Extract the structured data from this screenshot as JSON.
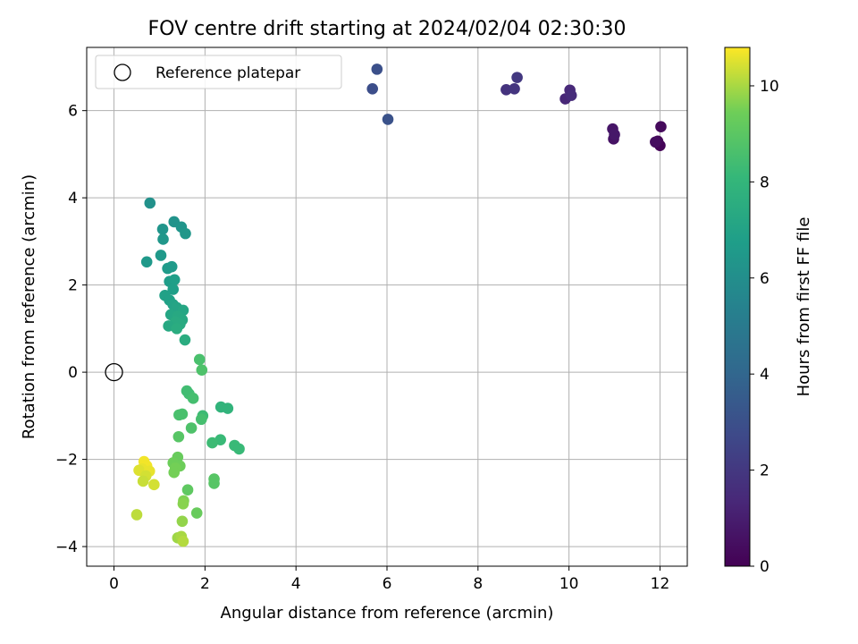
{
  "chart_data": {
    "type": "scatter",
    "title": "FOV centre drift starting at 2024/02/04 02:30:30",
    "xlabel": "Angular distance from reference (arcmin)",
    "ylabel": "Rotation from reference (arcmin)",
    "colorbar_label": "Hours from first FF file",
    "xlim": [
      -0.6,
      12.6
    ],
    "ylim": [
      -4.45,
      7.45
    ],
    "x_ticks": [
      0,
      2,
      4,
      6,
      8,
      10,
      12
    ],
    "y_ticks": [
      -4,
      -2,
      0,
      2,
      4,
      6
    ],
    "colorbar_range": [
      0,
      10.8
    ],
    "colorbar_ticks": [
      0,
      2,
      4,
      6,
      8,
      10
    ],
    "colormap": "viridis",
    "grid": true,
    "legend": {
      "placement": "top-left",
      "entries": [
        "Reference platepar"
      ]
    },
    "reference_point": {
      "x": 0,
      "y": 0
    },
    "points": [
      {
        "x": 12.0,
        "y": 5.2,
        "t": 0.1
      },
      {
        "x": 11.95,
        "y": 5.3,
        "t": 0.2
      },
      {
        "x": 12.02,
        "y": 5.63,
        "t": 0.3
      },
      {
        "x": 11.9,
        "y": 5.28,
        "t": 0.4
      },
      {
        "x": 10.98,
        "y": 5.35,
        "t": 0.6
      },
      {
        "x": 10.96,
        "y": 5.58,
        "t": 0.7
      },
      {
        "x": 11.0,
        "y": 5.45,
        "t": 0.8
      },
      {
        "x": 9.92,
        "y": 6.27,
        "t": 1.3
      },
      {
        "x": 10.02,
        "y": 6.47,
        "t": 1.4
      },
      {
        "x": 10.05,
        "y": 6.35,
        "t": 1.5
      },
      {
        "x": 8.62,
        "y": 6.48,
        "t": 1.8
      },
      {
        "x": 8.8,
        "y": 6.5,
        "t": 1.9
      },
      {
        "x": 8.86,
        "y": 6.76,
        "t": 2.0
      },
      {
        "x": 5.68,
        "y": 6.5,
        "t": 2.9
      },
      {
        "x": 5.78,
        "y": 6.95,
        "t": 3.0
      },
      {
        "x": 6.02,
        "y": 5.8,
        "t": 3.1
      },
      {
        "x": 0.79,
        "y": 3.88,
        "t": 6.1
      },
      {
        "x": 1.32,
        "y": 3.45,
        "t": 6.2
      },
      {
        "x": 1.48,
        "y": 3.33,
        "t": 6.3
      },
      {
        "x": 1.57,
        "y": 3.18,
        "t": 6.4
      },
      {
        "x": 1.07,
        "y": 3.28,
        "t": 6.3
      },
      {
        "x": 1.08,
        "y": 3.05,
        "t": 6.4
      },
      {
        "x": 1.03,
        "y": 2.68,
        "t": 6.5
      },
      {
        "x": 0.72,
        "y": 2.53,
        "t": 6.5
      },
      {
        "x": 1.18,
        "y": 2.38,
        "t": 6.6
      },
      {
        "x": 1.27,
        "y": 2.42,
        "t": 6.6
      },
      {
        "x": 1.22,
        "y": 2.08,
        "t": 6.7
      },
      {
        "x": 1.33,
        "y": 2.12,
        "t": 6.8
      },
      {
        "x": 1.3,
        "y": 1.9,
        "t": 6.8
      },
      {
        "x": 1.12,
        "y": 1.76,
        "t": 6.9
      },
      {
        "x": 1.22,
        "y": 1.65,
        "t": 6.9
      },
      {
        "x": 1.3,
        "y": 1.55,
        "t": 7.0
      },
      {
        "x": 1.38,
        "y": 1.48,
        "t": 7.1
      },
      {
        "x": 1.52,
        "y": 1.42,
        "t": 7.2
      },
      {
        "x": 1.25,
        "y": 1.32,
        "t": 7.2
      },
      {
        "x": 1.4,
        "y": 1.28,
        "t": 7.3
      },
      {
        "x": 1.5,
        "y": 1.2,
        "t": 7.3
      },
      {
        "x": 1.35,
        "y": 1.15,
        "t": 7.4
      },
      {
        "x": 1.45,
        "y": 1.1,
        "t": 7.4
      },
      {
        "x": 1.2,
        "y": 1.06,
        "t": 7.3
      },
      {
        "x": 1.38,
        "y": 1.0,
        "t": 7.5
      },
      {
        "x": 1.56,
        "y": 0.74,
        "t": 7.5
      },
      {
        "x": 1.88,
        "y": 0.29,
        "t": 8.6
      },
      {
        "x": 1.93,
        "y": 0.05,
        "t": 8.7
      },
      {
        "x": 1.6,
        "y": -0.43,
        "t": 8.4
      },
      {
        "x": 1.65,
        "y": -0.5,
        "t": 8.4
      },
      {
        "x": 1.74,
        "y": -0.6,
        "t": 8.5
      },
      {
        "x": 2.35,
        "y": -0.8,
        "t": 7.9
      },
      {
        "x": 2.5,
        "y": -0.83,
        "t": 7.9
      },
      {
        "x": 1.5,
        "y": -0.96,
        "t": 8.6
      },
      {
        "x": 1.43,
        "y": -0.98,
        "t": 8.6
      },
      {
        "x": 1.95,
        "y": -1.0,
        "t": 8.3
      },
      {
        "x": 1.92,
        "y": -1.08,
        "t": 8.5
      },
      {
        "x": 1.7,
        "y": -1.28,
        "t": 8.7
      },
      {
        "x": 1.42,
        "y": -1.48,
        "t": 8.9
      },
      {
        "x": 2.34,
        "y": -1.55,
        "t": 8.2
      },
      {
        "x": 2.16,
        "y": -1.62,
        "t": 8.3
      },
      {
        "x": 2.65,
        "y": -1.68,
        "t": 8.2
      },
      {
        "x": 2.75,
        "y": -1.76,
        "t": 8.2
      },
      {
        "x": 1.4,
        "y": -1.95,
        "t": 9.3
      },
      {
        "x": 1.3,
        "y": -2.08,
        "t": 9.4
      },
      {
        "x": 1.45,
        "y": -2.15,
        "t": 9.4
      },
      {
        "x": 1.35,
        "y": -2.2,
        "t": 9.5
      },
      {
        "x": 1.32,
        "y": -2.3,
        "t": 9.5
      },
      {
        "x": 2.2,
        "y": -2.45,
        "t": 8.9
      },
      {
        "x": 2.2,
        "y": -2.55,
        "t": 8.9
      },
      {
        "x": 1.62,
        "y": -2.7,
        "t": 9.1
      },
      {
        "x": 1.53,
        "y": -2.95,
        "t": 9.6
      },
      {
        "x": 1.52,
        "y": -3.02,
        "t": 9.7
      },
      {
        "x": 1.82,
        "y": -3.23,
        "t": 9.3
      },
      {
        "x": 1.5,
        "y": -3.42,
        "t": 9.8
      },
      {
        "x": 1.4,
        "y": -3.8,
        "t": 9.9
      },
      {
        "x": 1.48,
        "y": -3.77,
        "t": 10.0
      },
      {
        "x": 1.52,
        "y": -3.88,
        "t": 10.1
      },
      {
        "x": 0.66,
        "y": -2.05,
        "t": 10.7
      },
      {
        "x": 0.72,
        "y": -2.15,
        "t": 10.7
      },
      {
        "x": 0.62,
        "y": -2.22,
        "t": 10.6
      },
      {
        "x": 0.55,
        "y": -2.25,
        "t": 10.5
      },
      {
        "x": 0.78,
        "y": -2.27,
        "t": 10.6
      },
      {
        "x": 0.7,
        "y": -2.38,
        "t": 10.4
      },
      {
        "x": 0.64,
        "y": -2.5,
        "t": 10.3
      },
      {
        "x": 0.88,
        "y": -2.58,
        "t": 10.4
      },
      {
        "x": 0.5,
        "y": -3.27,
        "t": 10.2
      }
    ]
  }
}
